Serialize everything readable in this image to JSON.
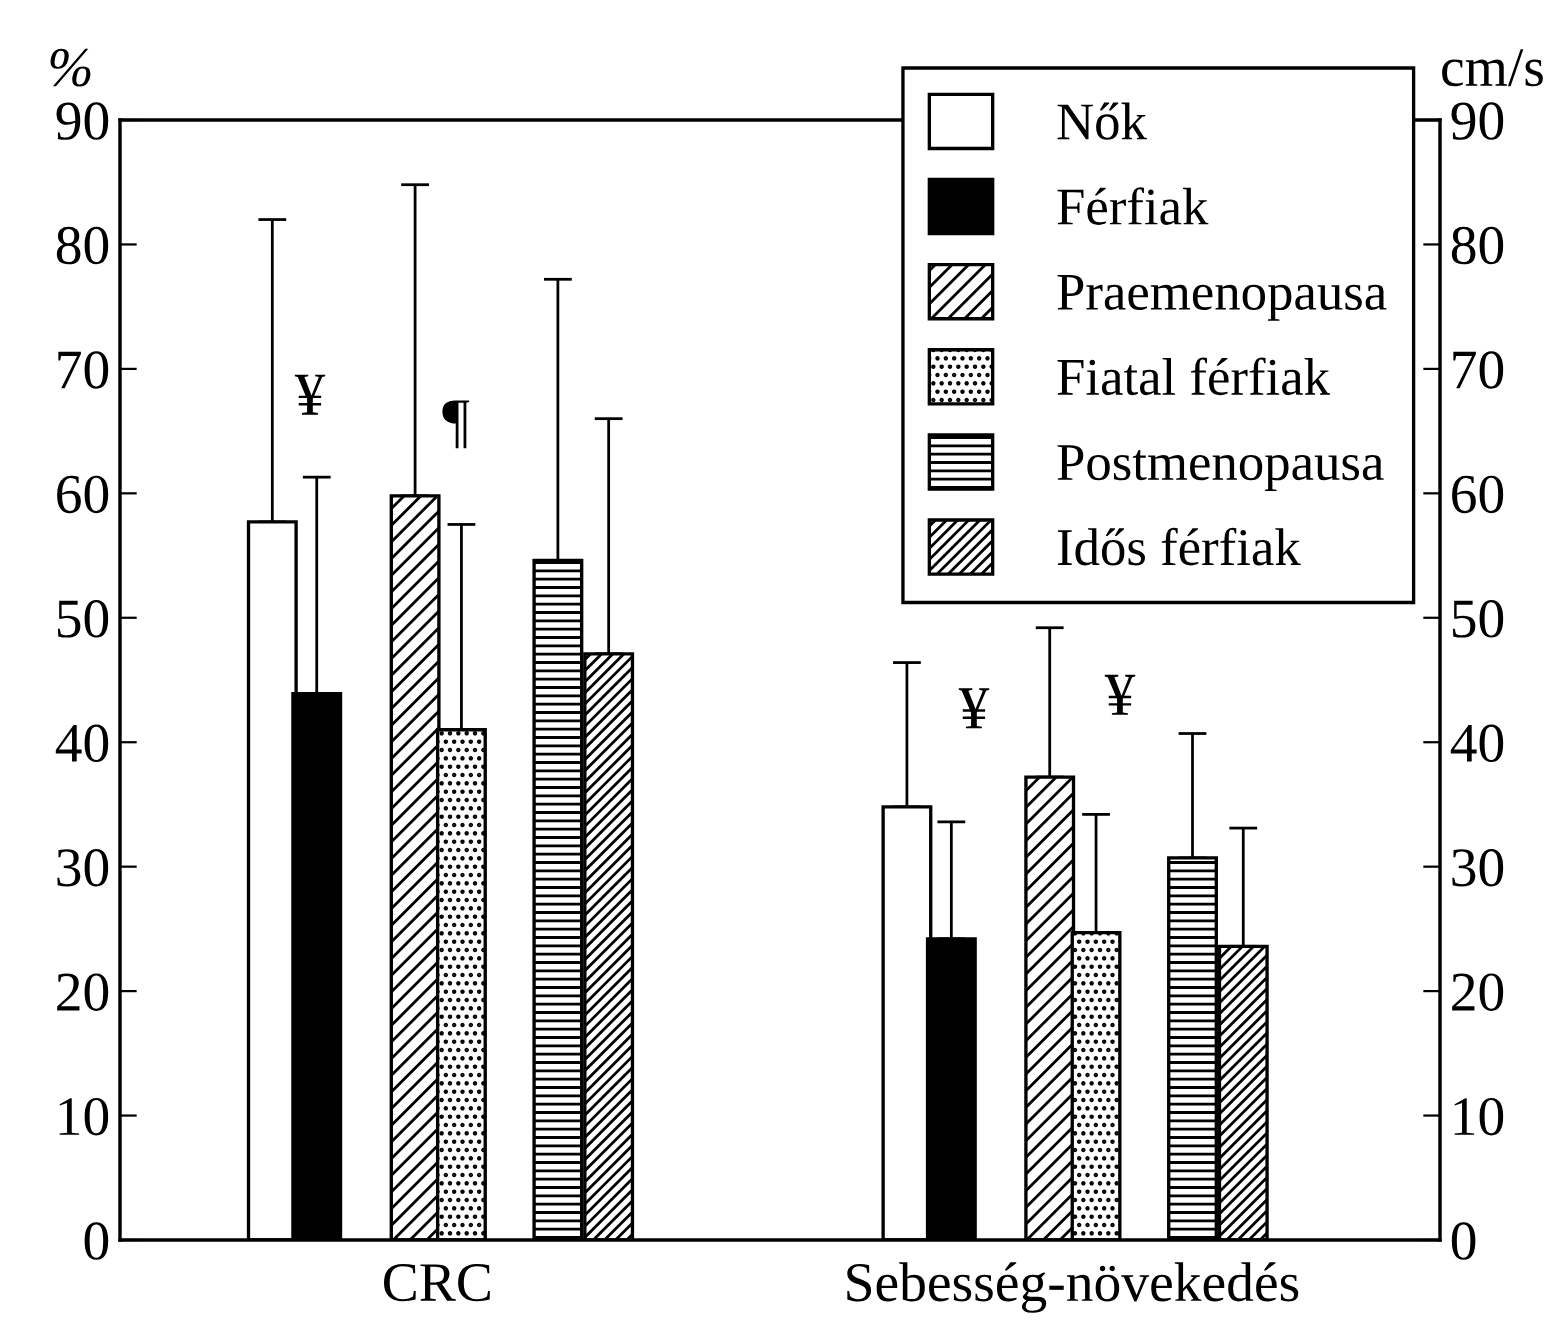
{
  "chart_data": {
    "type": "bar",
    "categories": [
      "CRC",
      "Sebesség-növekedés"
    ],
    "series": [
      {
        "name": "Nők",
        "color": "#ffffff",
        "values": [
          57.7,
          34.8
        ],
        "errors": [
          [
            57.7,
            82
          ],
          [
            34.8,
            46.4
          ]
        ]
      },
      {
        "name": "Férfiak",
        "color": "#000000",
        "values": [
          43.9,
          24.2
        ],
        "errors": [
          [
            43.9,
            61.3
          ],
          [
            24.2,
            33.6
          ]
        ]
      },
      {
        "name": "Praemenopausa",
        "color": "#000000",
        "values": [
          59.8,
          37.2
        ],
        "errors": [
          [
            59.8,
            84.8
          ],
          [
            37.2,
            49.2
          ]
        ]
      },
      {
        "name": "Fiatal férfiak",
        "color": "#000000",
        "values": [
          41,
          24.7
        ],
        "errors": [
          [
            41,
            57.5
          ],
          [
            24.7,
            34.2
          ]
        ]
      },
      {
        "name": "Postmenopausa",
        "color": "#000000",
        "values": [
          54.6,
          30.7
        ],
        "errors": [
          [
            54.6,
            77.2
          ],
          [
            30.7,
            40.7
          ]
        ]
      },
      {
        "name": "Idős férfiak",
        "color": "#000000",
        "values": [
          47.1,
          23.6
        ],
        "errors": [
          [
            47.1,
            66
          ],
          [
            23.6,
            33.1
          ]
        ]
      }
    ],
    "ylabel": "%",
    "y2label": "cm/s",
    "ylim": [
      0,
      90
    ],
    "yticks": [
      0,
      10,
      20,
      30,
      40,
      50,
      60,
      70,
      80,
      90
    ],
    "y2lim": [
      0,
      90
    ],
    "y2ticks": [
      0,
      10,
      20,
      30,
      40,
      50,
      60,
      70,
      80,
      90
    ],
    "annotations": [
      "¥",
      "¶",
      "¥",
      "¥"
    ],
    "legend": "top right",
    "grid": false
  }
}
